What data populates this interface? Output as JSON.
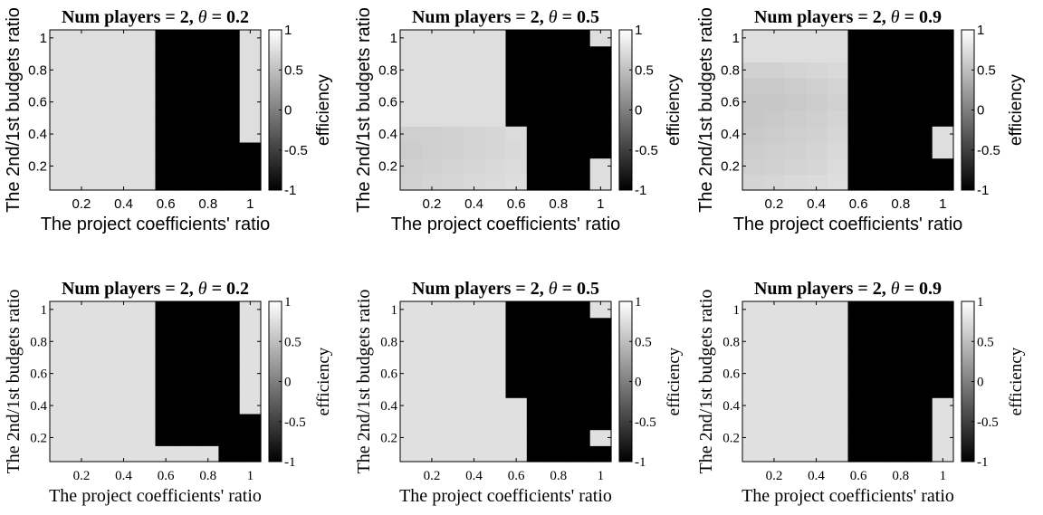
{
  "chart_data": [
    {
      "type": "heatmap",
      "title": "Num players = 2, θ = 0.2",
      "title_prefix": "Num players = 2, ",
      "title_theta": "θ",
      "title_suffix": " = 0.2",
      "xlabel": "The project coefficients' ratio",
      "ylabel": "The 2nd/1st budgets ratio",
      "colorbar_label": "efficiency",
      "x_ticks": [
        "0.2",
        "0.4",
        "0.6",
        "0.8",
        "1"
      ],
      "y_ticks": [
        "0.2",
        "0.4",
        "0.6",
        "0.8",
        "1"
      ],
      "colorbar_ticks": [
        "1",
        "0.5",
        "0",
        "-0.5",
        "-1"
      ],
      "xlim": [
        0.05,
        1.05
      ],
      "ylim": [
        0.05,
        1.05
      ],
      "clim": [
        -1,
        1
      ],
      "colormap": "gray",
      "x_centers": [
        0.1,
        0.2,
        0.3,
        0.4,
        0.5,
        0.6,
        0.7,
        0.8,
        0.9,
        1.0
      ],
      "y_centers": [
        0.1,
        0.2,
        0.3,
        0.4,
        0.5,
        0.6,
        0.7,
        0.8,
        0.9,
        1.0
      ],
      "values": [
        [
          0.74,
          0.74,
          0.74,
          0.74,
          0.74,
          -1,
          -1,
          -1,
          -1,
          -1
        ],
        [
          0.74,
          0.74,
          0.74,
          0.74,
          0.74,
          -1,
          -1,
          -1,
          -1,
          -1
        ],
        [
          0.74,
          0.74,
          0.74,
          0.74,
          0.74,
          -1,
          -1,
          -1,
          -1,
          -1
        ],
        [
          0.74,
          0.74,
          0.74,
          0.74,
          0.74,
          -1,
          -1,
          -1,
          -1,
          0.74
        ],
        [
          0.74,
          0.74,
          0.74,
          0.74,
          0.74,
          -1,
          -1,
          -1,
          -1,
          0.74
        ],
        [
          0.74,
          0.74,
          0.74,
          0.74,
          0.74,
          -1,
          -1,
          -1,
          -1,
          0.74
        ],
        [
          0.74,
          0.74,
          0.74,
          0.74,
          0.74,
          -1,
          -1,
          -1,
          -1,
          0.74
        ],
        [
          0.74,
          0.74,
          0.74,
          0.74,
          0.74,
          -1,
          -1,
          -1,
          -1,
          0.74
        ],
        [
          0.74,
          0.74,
          0.74,
          0.74,
          0.74,
          -1,
          -1,
          -1,
          -1,
          0.74
        ],
        [
          0.74,
          0.74,
          0.74,
          0.74,
          0.74,
          -1,
          -1,
          -1,
          -1,
          0.74
        ]
      ]
    },
    {
      "type": "heatmap",
      "title": "Num players = 2, θ = 0.5",
      "title_prefix": "Num players = 2, ",
      "title_theta": "θ",
      "title_suffix": " = 0.5",
      "xlabel": "The project coefficients' ratio",
      "ylabel": "The 2nd/1st budgets ratio",
      "colorbar_label": "efficiency",
      "x_ticks": [
        "0.2",
        "0.4",
        "0.6",
        "0.8",
        "1"
      ],
      "y_ticks": [
        "0.2",
        "0.4",
        "0.6",
        "0.8",
        "1"
      ],
      "colorbar_ticks": [
        "1",
        "0.5",
        "0",
        "-0.5",
        "-1"
      ],
      "xlim": [
        0.05,
        1.05
      ],
      "ylim": [
        0.05,
        1.05
      ],
      "clim": [
        -1,
        1
      ],
      "colormap": "gray",
      "x_centers": [
        0.1,
        0.2,
        0.3,
        0.4,
        0.5,
        0.6,
        0.7,
        0.8,
        0.9,
        1.0
      ],
      "y_centers": [
        0.1,
        0.2,
        0.3,
        0.4,
        0.5,
        0.6,
        0.7,
        0.8,
        0.9,
        1.0
      ],
      "values": [
        [
          0.64,
          0.66,
          0.68,
          0.7,
          0.72,
          0.74,
          -1,
          -1,
          -1,
          0.74
        ],
        [
          0.62,
          0.64,
          0.66,
          0.68,
          0.7,
          0.72,
          -1,
          -1,
          -1,
          0.74
        ],
        [
          0.6,
          0.62,
          0.64,
          0.66,
          0.68,
          0.7,
          -1,
          -1,
          -1,
          -1
        ],
        [
          0.62,
          0.62,
          0.64,
          0.66,
          0.68,
          0.72,
          -1,
          -1,
          -1,
          -1
        ],
        [
          0.74,
          0.74,
          0.74,
          0.74,
          0.74,
          -1,
          -1,
          -1,
          -1,
          -1
        ],
        [
          0.74,
          0.74,
          0.74,
          0.74,
          0.74,
          -1,
          -1,
          -1,
          -1,
          -1
        ],
        [
          0.74,
          0.74,
          0.74,
          0.74,
          0.74,
          -1,
          -1,
          -1,
          -1,
          -1
        ],
        [
          0.74,
          0.74,
          0.74,
          0.74,
          0.74,
          -1,
          -1,
          -1,
          -1,
          -1
        ],
        [
          0.74,
          0.74,
          0.74,
          0.74,
          0.74,
          -1,
          -1,
          -1,
          -1,
          -1
        ],
        [
          0.74,
          0.74,
          0.74,
          0.74,
          0.74,
          -1,
          -1,
          -1,
          -1,
          0.74
        ]
      ]
    },
    {
      "type": "heatmap",
      "title": "Num players = 2, θ = 0.9",
      "title_prefix": "Num players = 2, ",
      "title_theta": "θ",
      "title_suffix": " = 0.9",
      "xlabel": "The project coefficients' ratio",
      "ylabel": "The 2nd/1st budgets ratio",
      "colorbar_label": "efficiency",
      "x_ticks": [
        "0.2",
        "0.4",
        "0.6",
        "0.8",
        "1"
      ],
      "y_ticks": [
        "0.2",
        "0.4",
        "0.6",
        "0.8",
        "1"
      ],
      "colorbar_ticks": [
        "1",
        "0.5",
        "0",
        "-0.5",
        "-1"
      ],
      "xlim": [
        0.05,
        1.05
      ],
      "ylim": [
        0.05,
        1.05
      ],
      "clim": [
        -1,
        1
      ],
      "colormap": "gray",
      "x_centers": [
        0.1,
        0.2,
        0.3,
        0.4,
        0.5,
        0.6,
        0.7,
        0.8,
        0.9,
        1.0
      ],
      "y_centers": [
        0.1,
        0.2,
        0.3,
        0.4,
        0.5,
        0.6,
        0.7,
        0.8,
        0.9,
        1.0
      ],
      "values": [
        [
          0.66,
          0.68,
          0.7,
          0.72,
          0.74,
          -1,
          -1,
          -1,
          -1,
          -1
        ],
        [
          0.62,
          0.64,
          0.66,
          0.68,
          0.72,
          -1,
          -1,
          -1,
          -1,
          -1
        ],
        [
          0.6,
          0.62,
          0.64,
          0.66,
          0.7,
          -1,
          -1,
          -1,
          -1,
          0.74
        ],
        [
          0.58,
          0.6,
          0.62,
          0.64,
          0.68,
          -1,
          -1,
          -1,
          -1,
          0.74
        ],
        [
          0.56,
          0.58,
          0.6,
          0.62,
          0.66,
          -1,
          -1,
          -1,
          -1,
          -1
        ],
        [
          0.56,
          0.56,
          0.58,
          0.6,
          0.64,
          -1,
          -1,
          -1,
          -1,
          -1
        ],
        [
          0.58,
          0.58,
          0.6,
          0.62,
          0.66,
          -1,
          -1,
          -1,
          -1,
          -1
        ],
        [
          0.64,
          0.64,
          0.66,
          0.68,
          0.7,
          -1,
          -1,
          -1,
          -1,
          -1
        ],
        [
          0.74,
          0.74,
          0.74,
          0.74,
          0.74,
          -1,
          -1,
          -1,
          -1,
          -1
        ],
        [
          0.74,
          0.74,
          0.74,
          0.74,
          0.74,
          -1,
          -1,
          -1,
          -1,
          -1
        ]
      ]
    },
    {
      "type": "heatmap",
      "title": "Num players = 2, θ = 0.2",
      "title_prefix": "Num players = 2, ",
      "title_theta": "θ",
      "title_suffix": " = 0.2",
      "xlabel": "The project coefficients' ratio",
      "ylabel": "The 2nd/1st budgets ratio",
      "colorbar_label": "efficiency",
      "x_ticks": [
        "0.2",
        "0.4",
        "0.6",
        "0.8",
        "1"
      ],
      "y_ticks": [
        "0.2",
        "0.4",
        "0.6",
        "0.8",
        "1"
      ],
      "colorbar_ticks": [
        "1",
        "0.5",
        "0",
        "-0.5",
        "-1"
      ],
      "xlim": [
        0.05,
        1.05
      ],
      "ylim": [
        0.05,
        1.05
      ],
      "clim": [
        -1,
        1
      ],
      "colormap": "gray",
      "x_centers": [
        0.1,
        0.2,
        0.3,
        0.4,
        0.5,
        0.6,
        0.7,
        0.8,
        0.9,
        1.0
      ],
      "y_centers": [
        0.1,
        0.2,
        0.3,
        0.4,
        0.5,
        0.6,
        0.7,
        0.8,
        0.9,
        1.0
      ],
      "values": [
        [
          0.76,
          0.76,
          0.76,
          0.76,
          0.76,
          0.76,
          0.76,
          0.76,
          -1,
          -1
        ],
        [
          0.76,
          0.76,
          0.76,
          0.76,
          0.76,
          -1,
          -1,
          -1,
          -1,
          -1
        ],
        [
          0.76,
          0.76,
          0.76,
          0.76,
          0.76,
          -1,
          -1,
          -1,
          -1,
          -1
        ],
        [
          0.76,
          0.76,
          0.76,
          0.76,
          0.76,
          -1,
          -1,
          -1,
          -1,
          0.76
        ],
        [
          0.76,
          0.76,
          0.76,
          0.76,
          0.76,
          -1,
          -1,
          -1,
          -1,
          0.76
        ],
        [
          0.76,
          0.76,
          0.76,
          0.76,
          0.76,
          -1,
          -1,
          -1,
          -1,
          0.76
        ],
        [
          0.76,
          0.76,
          0.76,
          0.76,
          0.76,
          -1,
          -1,
          -1,
          -1,
          0.76
        ],
        [
          0.76,
          0.76,
          0.76,
          0.76,
          0.76,
          -1,
          -1,
          -1,
          -1,
          0.76
        ],
        [
          0.76,
          0.76,
          0.76,
          0.76,
          0.76,
          -1,
          -1,
          -1,
          -1,
          0.76
        ],
        [
          0.76,
          0.76,
          0.76,
          0.76,
          0.76,
          -1,
          -1,
          -1,
          -1,
          0.76
        ]
      ]
    },
    {
      "type": "heatmap",
      "title": "Num players = 2, θ = 0.5",
      "title_prefix": "Num players = 2, ",
      "title_theta": "θ",
      "title_suffix": " = 0.5",
      "xlabel": "The project coefficients' ratio",
      "ylabel": "The 2nd/1st budgets ratio",
      "colorbar_label": "efficiency",
      "x_ticks": [
        "0.2",
        "0.4",
        "0.6",
        "0.8",
        "1"
      ],
      "y_ticks": [
        "0.2",
        "0.4",
        "0.6",
        "0.8",
        "1"
      ],
      "colorbar_ticks": [
        "1",
        "0.5",
        "0",
        "-0.5",
        "-1"
      ],
      "xlim": [
        0.05,
        1.05
      ],
      "ylim": [
        0.05,
        1.05
      ],
      "clim": [
        -1,
        1
      ],
      "colormap": "gray",
      "x_centers": [
        0.1,
        0.2,
        0.3,
        0.4,
        0.5,
        0.6,
        0.7,
        0.8,
        0.9,
        1.0
      ],
      "y_centers": [
        0.1,
        0.2,
        0.3,
        0.4,
        0.5,
        0.6,
        0.7,
        0.8,
        0.9,
        1.0
      ],
      "values": [
        [
          0.76,
          0.76,
          0.76,
          0.76,
          0.76,
          0.76,
          -1,
          -1,
          -1,
          -1
        ],
        [
          0.76,
          0.76,
          0.76,
          0.76,
          0.76,
          0.76,
          -1,
          -1,
          -1,
          0.76
        ],
        [
          0.76,
          0.76,
          0.76,
          0.76,
          0.76,
          0.76,
          -1,
          -1,
          -1,
          -1
        ],
        [
          0.76,
          0.76,
          0.76,
          0.76,
          0.76,
          0.76,
          -1,
          -1,
          -1,
          -1
        ],
        [
          0.76,
          0.76,
          0.76,
          0.76,
          0.76,
          -1,
          -1,
          -1,
          -1,
          -1
        ],
        [
          0.76,
          0.76,
          0.76,
          0.76,
          0.76,
          -1,
          -1,
          -1,
          -1,
          -1
        ],
        [
          0.76,
          0.76,
          0.76,
          0.76,
          0.76,
          -1,
          -1,
          -1,
          -1,
          -1
        ],
        [
          0.76,
          0.76,
          0.76,
          0.76,
          0.76,
          -1,
          -1,
          -1,
          -1,
          -1
        ],
        [
          0.76,
          0.76,
          0.76,
          0.76,
          0.76,
          -1,
          -1,
          -1,
          -1,
          -1
        ],
        [
          0.76,
          0.76,
          0.76,
          0.76,
          0.76,
          -1,
          -1,
          -1,
          -1,
          0.76
        ]
      ]
    },
    {
      "type": "heatmap",
      "title": "Num players = 2, θ = 0.9",
      "title_prefix": "Num players = 2, ",
      "title_theta": "θ",
      "title_suffix": " = 0.9",
      "xlabel": "The project coefficients' ratio",
      "ylabel": "The 2nd/1st budgets ratio",
      "colorbar_label": "efficiency",
      "x_ticks": [
        "0.2",
        "0.4",
        "0.6",
        "0.8",
        "1"
      ],
      "y_ticks": [
        "0.2",
        "0.4",
        "0.6",
        "0.8",
        "1"
      ],
      "colorbar_ticks": [
        "1",
        "0.5",
        "0",
        "-0.5",
        "-1"
      ],
      "xlim": [
        0.05,
        1.05
      ],
      "ylim": [
        0.05,
        1.05
      ],
      "clim": [
        -1,
        1
      ],
      "colormap": "gray",
      "x_centers": [
        0.1,
        0.2,
        0.3,
        0.4,
        0.5,
        0.6,
        0.7,
        0.8,
        0.9,
        1.0
      ],
      "y_centers": [
        0.1,
        0.2,
        0.3,
        0.4,
        0.5,
        0.6,
        0.7,
        0.8,
        0.9,
        1.0
      ],
      "values": [
        [
          0.76,
          0.76,
          0.76,
          0.76,
          0.76,
          -1,
          -1,
          -1,
          -1,
          0.76
        ],
        [
          0.76,
          0.76,
          0.76,
          0.76,
          0.76,
          -1,
          -1,
          -1,
          -1,
          0.76
        ],
        [
          0.76,
          0.76,
          0.76,
          0.76,
          0.76,
          -1,
          -1,
          -1,
          -1,
          0.76
        ],
        [
          0.76,
          0.76,
          0.76,
          0.76,
          0.76,
          -1,
          -1,
          -1,
          -1,
          0.76
        ],
        [
          0.76,
          0.76,
          0.76,
          0.76,
          0.76,
          -1,
          -1,
          -1,
          -1,
          -1
        ],
        [
          0.76,
          0.76,
          0.76,
          0.76,
          0.76,
          -1,
          -1,
          -1,
          -1,
          -1
        ],
        [
          0.76,
          0.76,
          0.76,
          0.76,
          0.76,
          -1,
          -1,
          -1,
          -1,
          -1
        ],
        [
          0.76,
          0.76,
          0.76,
          0.76,
          0.76,
          -1,
          -1,
          -1,
          -1,
          -1
        ],
        [
          0.76,
          0.76,
          0.76,
          0.76,
          0.76,
          -1,
          -1,
          -1,
          -1,
          -1
        ],
        [
          0.76,
          0.76,
          0.76,
          0.76,
          0.76,
          -1,
          -1,
          -1,
          -1,
          -1
        ]
      ]
    }
  ]
}
